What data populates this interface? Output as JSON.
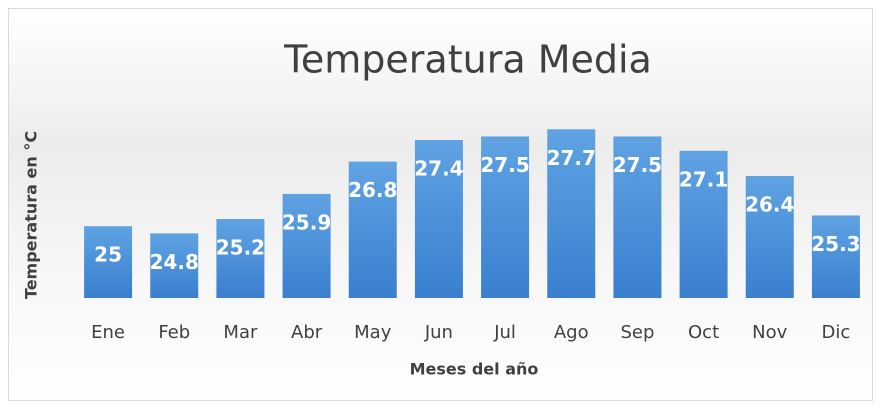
{
  "chart_data": {
    "type": "bar",
    "title": "Temperatura Media",
    "x_label": "Meses del año",
    "y_label": "Temperatura en °C",
    "categories": [
      "Ene",
      "Feb",
      "Mar",
      "Abr",
      "May",
      "Jun",
      "Jul",
      "Ago",
      "Sep",
      "Oct",
      "Nov",
      "Dic"
    ],
    "values": [
      25,
      24.8,
      25.2,
      25.9,
      26.8,
      27.4,
      27.5,
      27.7,
      27.5,
      27.1,
      26.4,
      25.3
    ],
    "color": "#4a8fd8",
    "ylim": [
      23,
      28
    ],
    "grid": false
  }
}
